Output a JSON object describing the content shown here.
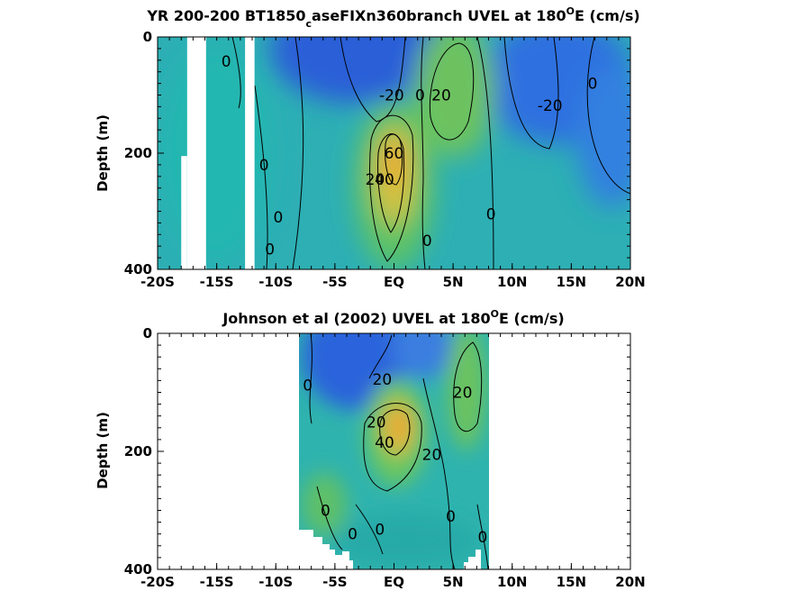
{
  "chart_data": [
    {
      "type": "heatmap",
      "title_main": "YR 200-200 BT1850",
      "title_sub": "c",
      "title_rest": "aseFIXn360branch UVEL at 180",
      "title_sup": "O",
      "title_end": "E (cm/s)",
      "ylabel": "Depth (m)",
      "xlabel": "",
      "xlim": [
        -20,
        20
      ],
      "ylim": [
        0,
        400
      ],
      "y_reversed": true,
      "x_ticks": [
        {
          "v": -20,
          "label": "-20S"
        },
        {
          "v": -15,
          "label": "-15S"
        },
        {
          "v": -10,
          "label": "-10S"
        },
        {
          "v": -5,
          "label": "-5S"
        },
        {
          "v": 0,
          "label": "EQ"
        },
        {
          "v": 5,
          "label": "5N"
        },
        {
          "v": 10,
          "label": "10N"
        },
        {
          "v": 15,
          "label": "15N"
        },
        {
          "v": 20,
          "label": "20N"
        }
      ],
      "y_ticks": [
        {
          "v": 0,
          "label": "0"
        },
        {
          "v": 200,
          "label": "200"
        },
        {
          "v": 400,
          "label": "400"
        }
      ],
      "field_extent": {
        "x": [
          -20,
          20
        ],
        "depth": [
          0,
          400
        ]
      },
      "no_data": [
        {
          "x": [
            -17.5,
            -15.9
          ],
          "depth": [
            0,
            400
          ]
        },
        {
          "x": [
            -18.0,
            -17.5
          ],
          "depth": [
            205,
            400
          ]
        },
        {
          "x": [
            -12.6,
            -11.8
          ],
          "depth": [
            0,
            400
          ]
        }
      ],
      "features": [
        {
          "x": 0.2,
          "depth": 200,
          "value": 60
        },
        {
          "x": 5.0,
          "depth": 90,
          "value": 20
        },
        {
          "x": -1.0,
          "depth": 20,
          "value": -25
        },
        {
          "x": 13.0,
          "depth": 60,
          "value": -20
        },
        {
          "x": 18.0,
          "depth": 130,
          "value": -12
        }
      ],
      "contour_labels": [
        {
          "x": -14.2,
          "depth": 42,
          "text": "0"
        },
        {
          "x": -11.0,
          "depth": 220,
          "text": "0"
        },
        {
          "x": -9.8,
          "depth": 310,
          "text": "0"
        },
        {
          "x": -10.5,
          "depth": 365,
          "text": "0"
        },
        {
          "x": -0.2,
          "depth": 100,
          "text": "-20"
        },
        {
          "x": 2.2,
          "depth": 100,
          "text": "0"
        },
        {
          "x": 4.0,
          "depth": 100,
          "text": "20"
        },
        {
          "x": 0.0,
          "depth": 200,
          "text": "60"
        },
        {
          "x": -1.6,
          "depth": 245,
          "text": "20"
        },
        {
          "x": -0.8,
          "depth": 245,
          "text": "40"
        },
        {
          "x": 2.8,
          "depth": 350,
          "text": "0"
        },
        {
          "x": 8.2,
          "depth": 305,
          "text": "0"
        },
        {
          "x": 13.2,
          "depth": 118,
          "text": "-20"
        },
        {
          "x": 16.8,
          "depth": 80,
          "text": "0"
        }
      ]
    },
    {
      "type": "heatmap",
      "title_main": "Johnson et al (2002) UVEL at 180",
      "title_sup": "O",
      "title_end": "E (cm/s)",
      "ylabel": "Depth (m)",
      "xlabel": "",
      "xlim": [
        -20,
        20
      ],
      "ylim": [
        0,
        400
      ],
      "y_reversed": true,
      "x_ticks": [
        {
          "v": -20,
          "label": "-20S"
        },
        {
          "v": -15,
          "label": "-15S"
        },
        {
          "v": -10,
          "label": "-10S"
        },
        {
          "v": -5,
          "label": "-5S"
        },
        {
          "v": 0,
          "label": "EQ"
        },
        {
          "v": 5,
          "label": "5N"
        },
        {
          "v": 10,
          "label": "10N"
        },
        {
          "v": 15,
          "label": "15N"
        },
        {
          "v": 20,
          "label": "20N"
        }
      ],
      "y_ticks": [
        {
          "v": 0,
          "label": "0"
        },
        {
          "v": 200,
          "label": "200"
        },
        {
          "v": 400,
          "label": "400"
        }
      ],
      "field_extent": {
        "x": [
          -8,
          8
        ],
        "depth": [
          0,
          400
        ]
      },
      "features": [
        {
          "x": 0.5,
          "depth": 175,
          "value": 50
        },
        {
          "x": 6.0,
          "depth": 90,
          "value": 25
        },
        {
          "x": -1.0,
          "depth": 60,
          "value": -22
        },
        {
          "x": -4.5,
          "depth": 320,
          "value": 12
        }
      ],
      "contour_labels": [
        {
          "x": -7.3,
          "depth": 88,
          "text": "0"
        },
        {
          "x": -1.0,
          "depth": 78,
          "text": "20"
        },
        {
          "x": 5.8,
          "depth": 100,
          "text": "20"
        },
        {
          "x": -1.5,
          "depth": 150,
          "text": "20"
        },
        {
          "x": -0.8,
          "depth": 185,
          "text": "40"
        },
        {
          "x": 3.2,
          "depth": 205,
          "text": "20"
        },
        {
          "x": -5.8,
          "depth": 300,
          "text": "0"
        },
        {
          "x": 4.8,
          "depth": 310,
          "text": "0"
        },
        {
          "x": -3.5,
          "depth": 340,
          "text": "0"
        },
        {
          "x": -1.2,
          "depth": 332,
          "text": "0"
        },
        {
          "x": 7.5,
          "depth": 345,
          "text": "0"
        }
      ]
    }
  ]
}
